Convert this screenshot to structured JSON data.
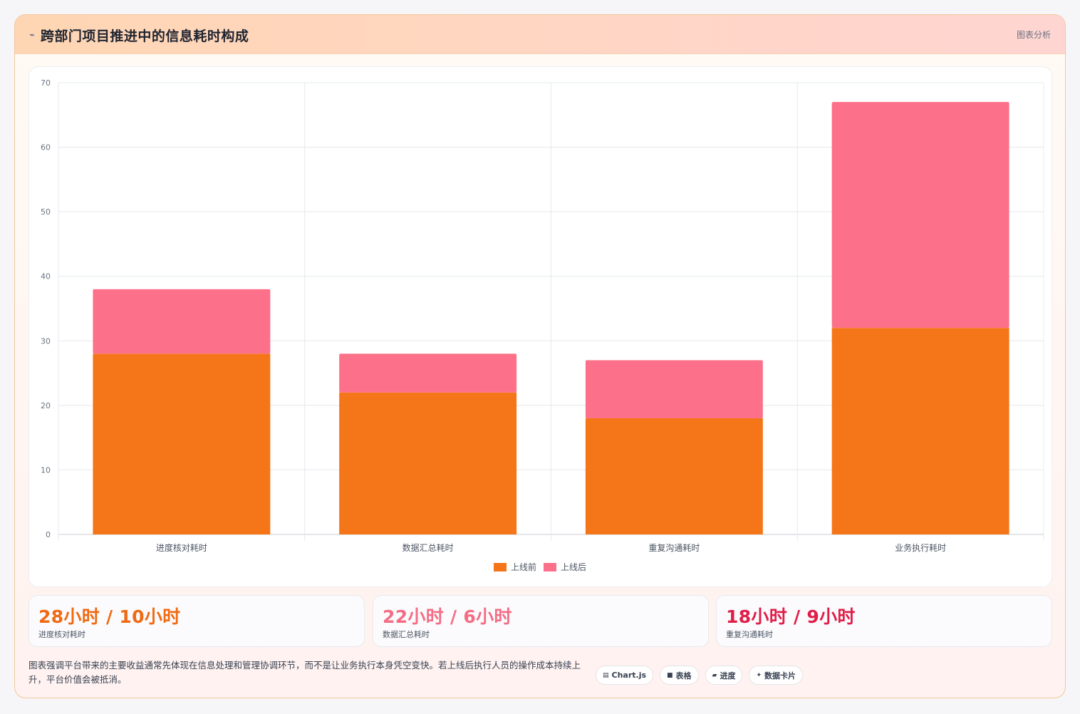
{
  "header": {
    "icon": "arrow-icon",
    "title": "跨部门项目推进中的信息耗时构成",
    "tag": "图表分析"
  },
  "chart_data": {
    "type": "bar",
    "stacked": true,
    "categories": [
      "进度核对耗时",
      "数据汇总耗时",
      "重复沟通耗时",
      "业务执行耗时"
    ],
    "series": [
      {
        "name": "上线前",
        "values": [
          28,
          22,
          18,
          32
        ],
        "color": "#f57519"
      },
      {
        "name": "上线后",
        "values": [
          10,
          6,
          9,
          35
        ],
        "color": "#fc7189"
      }
    ],
    "ylim": [
      0,
      70
    ],
    "yticks": [
      0,
      10,
      20,
      30,
      40,
      50,
      60,
      70
    ],
    "grid": true,
    "legend": "bottom-center"
  },
  "stats": [
    {
      "value": "28小时 / 10小时",
      "label": "进度核对耗时",
      "color": "#f06a12"
    },
    {
      "value": "22小时 / 6小时",
      "label": "数据汇总耗时",
      "color": "#f46d85"
    },
    {
      "value": "18小时 / 9小时",
      "label": "重复沟通耗时",
      "color": "#e11d48"
    }
  ],
  "footer": {
    "text": "图表强调平台带来的主要收益通常先体现在信息处理和管理协调环节，而不是让业务执行本身凭空变快。若上线后执行人员的操作成本持续上升，平台价值会被抵消。",
    "chips": [
      {
        "icon": "chart-icon",
        "glyph": "▤",
        "label": "Chart.js"
      },
      {
        "icon": "table-icon",
        "glyph": "■",
        "label": "表格"
      },
      {
        "icon": "progress-icon",
        "glyph": "▰",
        "label": "进度"
      },
      {
        "icon": "sparkle-icon",
        "glyph": "✦",
        "label": "数据卡片"
      }
    ]
  }
}
